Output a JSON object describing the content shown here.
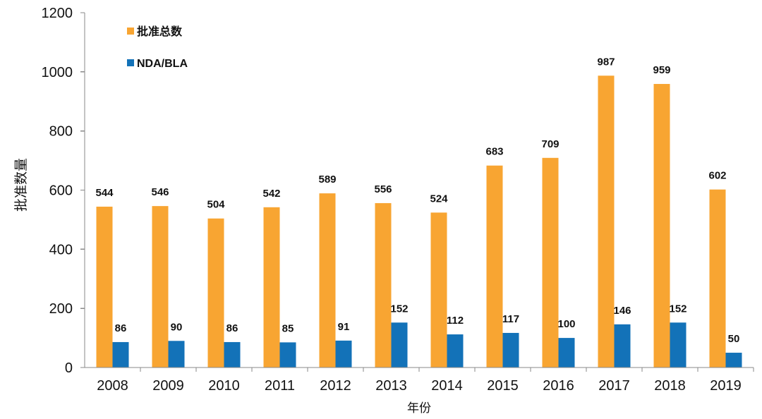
{
  "chart_data": {
    "type": "bar",
    "categories": [
      "2008",
      "2009",
      "2010",
      "2011",
      "2012",
      "2013",
      "2014",
      "2015",
      "2016",
      "2017",
      "2018",
      "2019"
    ],
    "series": [
      {
        "name": "批准总数",
        "color": "#F8A532",
        "values": [
          544,
          546,
          504,
          542,
          589,
          556,
          524,
          683,
          709,
          987,
          959,
          602
        ]
      },
      {
        "name": "NDA/BLA",
        "color": "#1372B8",
        "values": [
          86,
          90,
          86,
          85,
          91,
          152,
          112,
          117,
          100,
          146,
          152,
          50
        ]
      }
    ],
    "xlabel": "年份",
    "ylabel": "批准数量",
    "ylim": [
      0,
      1200
    ],
    "yticks": [
      0,
      200,
      400,
      600,
      800,
      1000,
      1200
    ],
    "grid": false,
    "legend_position": "top-left",
    "data_labels": true
  }
}
